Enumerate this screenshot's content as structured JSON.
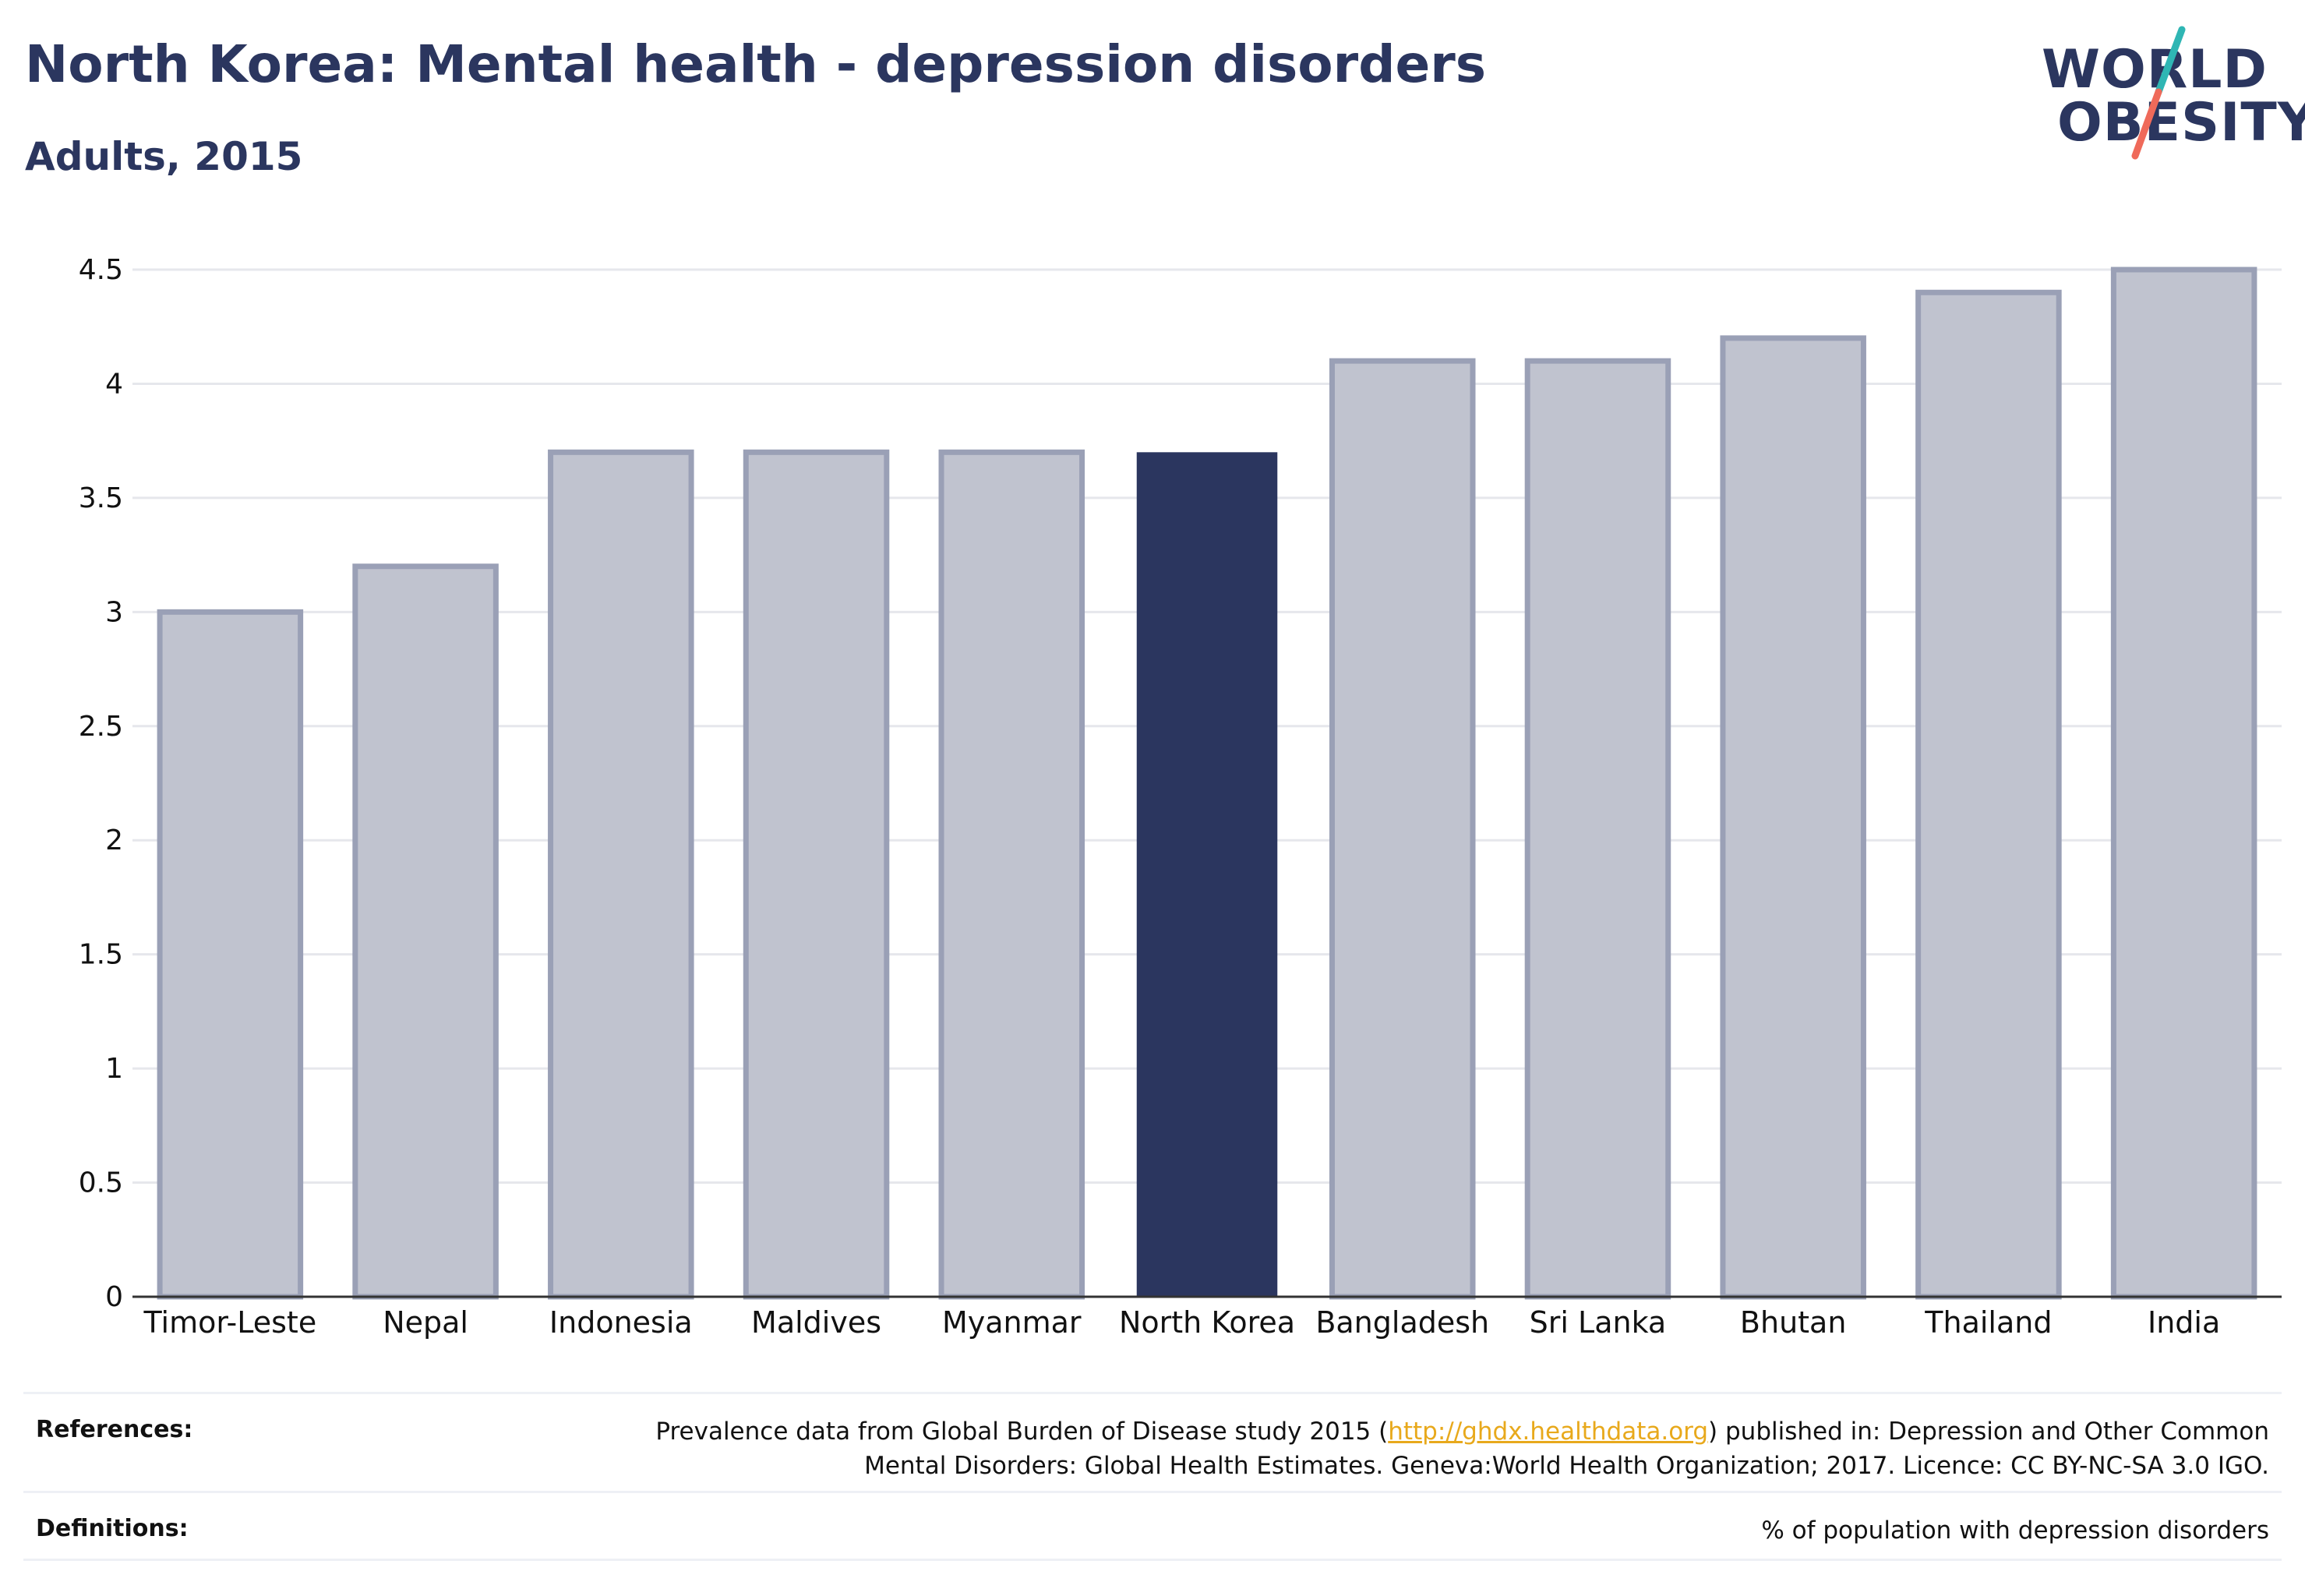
{
  "header": {
    "title": "North Korea: Mental health - depression disorders",
    "subtitle": "Adults, 2015"
  },
  "logo": {
    "line1": "WORLD",
    "line2": "OBESITY",
    "accent_top": "#2fb6b4",
    "accent_bottom": "#ef6a5a"
  },
  "colors": {
    "bar": "#c0c3cf",
    "bar_border": "#9aa0b6",
    "highlight": "#2b365f",
    "grid": "#e6e7ec",
    "axis": "#333333"
  },
  "chart_data": {
    "type": "bar",
    "categories": [
      "Timor-Leste",
      "Nepal",
      "Indonesia",
      "Maldives",
      "Myanmar",
      "North Korea",
      "Bangladesh",
      "Sri Lanka",
      "Bhutan",
      "Thailand",
      "India"
    ],
    "values": [
      3.0,
      3.2,
      3.7,
      3.7,
      3.7,
      3.7,
      4.1,
      4.1,
      4.2,
      4.4,
      4.5
    ],
    "highlight_category": "North Korea",
    "title": "North Korea: Mental health - depression disorders",
    "subtitle": "Adults, 2015",
    "xlabel": "",
    "ylabel": "",
    "ylim": [
      0,
      4.5
    ],
    "yticks": [
      "0",
      "0.5",
      "1",
      "1.5",
      "2",
      "2.5",
      "3",
      "3.5",
      "4",
      "4.5"
    ],
    "grid": true,
    "legend": "none"
  },
  "references": {
    "label": "References:",
    "text_before": "Prevalence data from Global Burden of Disease study 2015 (",
    "link": "http://ghdx.healthdata.org",
    "text_after": ") published in: Depression and Other Common",
    "line2": "Mental Disorders: Global Health Estimates. Geneva:World Health Organization; 2017. Licence: CC BY-NC-SA 3.0 IGO."
  },
  "definitions": {
    "label": "Definitions:",
    "text": "% of population with depression disorders"
  }
}
